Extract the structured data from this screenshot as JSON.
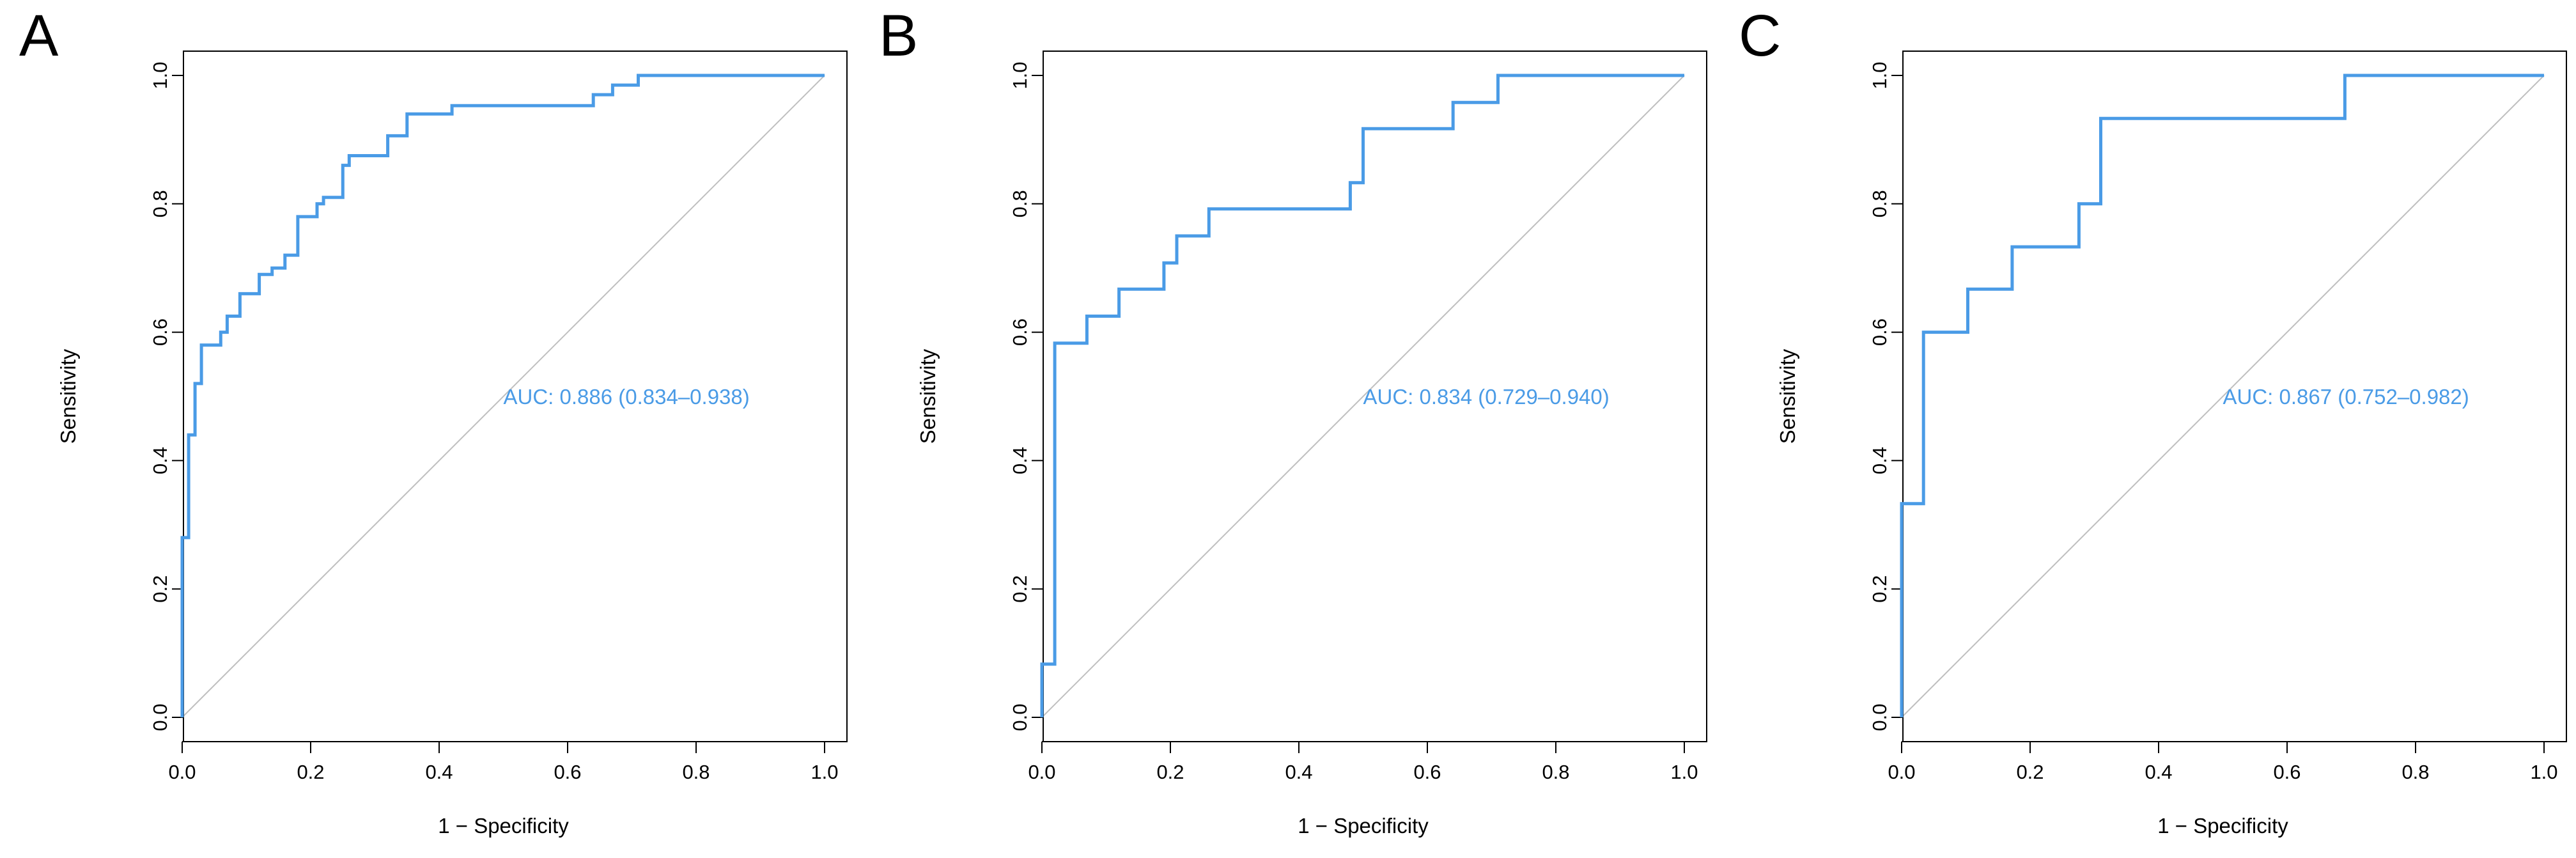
{
  "chart_data": [
    {
      "type": "line",
      "panel_label": "A",
      "xlabel": "1 − Specificity",
      "ylabel": "Sensitivity",
      "xlim": [
        0,
        1
      ],
      "ylim": [
        0,
        1
      ],
      "xticks": [
        "0.0",
        "0.2",
        "0.4",
        "0.6",
        "0.8",
        "1.0"
      ],
      "yticks": [
        "0.0",
        "0.2",
        "0.4",
        "0.6",
        "0.8",
        "1.0"
      ],
      "annotation": "AUC: 0.886 (0.834–0.938)",
      "color": "#4a9be6",
      "diagonal_color": "#bfbfbf",
      "series": [
        {
          "x": [
            0,
            0,
            0.01,
            0.01,
            0.02,
            0.02,
            0.03,
            0.03,
            0.06,
            0.06,
            0.07,
            0.07,
            0.09,
            0.09,
            0.12,
            0.12,
            0.14,
            0.14,
            0.16,
            0.16,
            0.18,
            0.18,
            0.21,
            0.21,
            0.22,
            0.22,
            0.25,
            0.25,
            0.26,
            0.26,
            0.32,
            0.32,
            0.35,
            0.35,
            0.42,
            0.42,
            0.64,
            0.64,
            0.67,
            0.67,
            0.71,
            0.71,
            1.0
          ],
          "y": [
            0,
            0.28,
            0.28,
            0.44,
            0.44,
            0.52,
            0.52,
            0.58,
            0.58,
            0.6,
            0.6,
            0.625,
            0.625,
            0.66,
            0.66,
            0.69,
            0.69,
            0.7,
            0.7,
            0.72,
            0.72,
            0.78,
            0.78,
            0.8,
            0.8,
            0.81,
            0.81,
            0.86,
            0.86,
            0.875,
            0.875,
            0.906,
            0.906,
            0.94,
            0.94,
            0.953,
            0.953,
            0.97,
            0.97,
            0.985,
            0.985,
            1.0,
            1.0
          ]
        }
      ]
    },
    {
      "type": "line",
      "panel_label": "B",
      "xlabel": "1 − Specificity",
      "ylabel": "Sensitivity",
      "xlim": [
        0,
        1
      ],
      "ylim": [
        0,
        1
      ],
      "xticks": [
        "0.0",
        "0.2",
        "0.4",
        "0.6",
        "0.8",
        "1.0"
      ],
      "yticks": [
        "0.0",
        "0.2",
        "0.4",
        "0.6",
        "0.8",
        "1.0"
      ],
      "annotation": "AUC: 0.834 (0.729–0.940)",
      "color": "#4a9be6",
      "diagonal_color": "#bfbfbf",
      "series": [
        {
          "x": [
            0,
            0,
            0.02,
            0.02,
            0.07,
            0.07,
            0.12,
            0.12,
            0.19,
            0.19,
            0.21,
            0.21,
            0.26,
            0.26,
            0.48,
            0.48,
            0.5,
            0.5,
            0.64,
            0.64,
            0.71,
            0.71,
            1.0
          ],
          "y": [
            0,
            0.083,
            0.083,
            0.583,
            0.583,
            0.625,
            0.625,
            0.667,
            0.667,
            0.708,
            0.708,
            0.75,
            0.75,
            0.792,
            0.792,
            0.833,
            0.833,
            0.917,
            0.917,
            0.958,
            0.958,
            1.0,
            1.0
          ]
        }
      ]
    },
    {
      "type": "line",
      "panel_label": "C",
      "xlabel": "1 − Specificity",
      "ylabel": "Sensitivity",
      "xlim": [
        0,
        1
      ],
      "ylim": [
        0,
        1
      ],
      "xticks": [
        "0.0",
        "0.2",
        "0.4",
        "0.6",
        "0.8",
        "1.0"
      ],
      "yticks": [
        "0.0",
        "0.2",
        "0.4",
        "0.6",
        "0.8",
        "1.0"
      ],
      "annotation": "AUC: 0.867 (0.752–0.982)",
      "color": "#4a9be6",
      "diagonal_color": "#bfbfbf",
      "series": [
        {
          "x": [
            0,
            0,
            0.034,
            0.034,
            0.103,
            0.103,
            0.172,
            0.172,
            0.276,
            0.276,
            0.31,
            0.31,
            0.69,
            0.69,
            1.0
          ],
          "y": [
            0,
            0.333,
            0.333,
            0.6,
            0.6,
            0.667,
            0.667,
            0.733,
            0.733,
            0.8,
            0.8,
            0.933,
            0.933,
            1.0,
            1.0
          ]
        }
      ]
    }
  ]
}
